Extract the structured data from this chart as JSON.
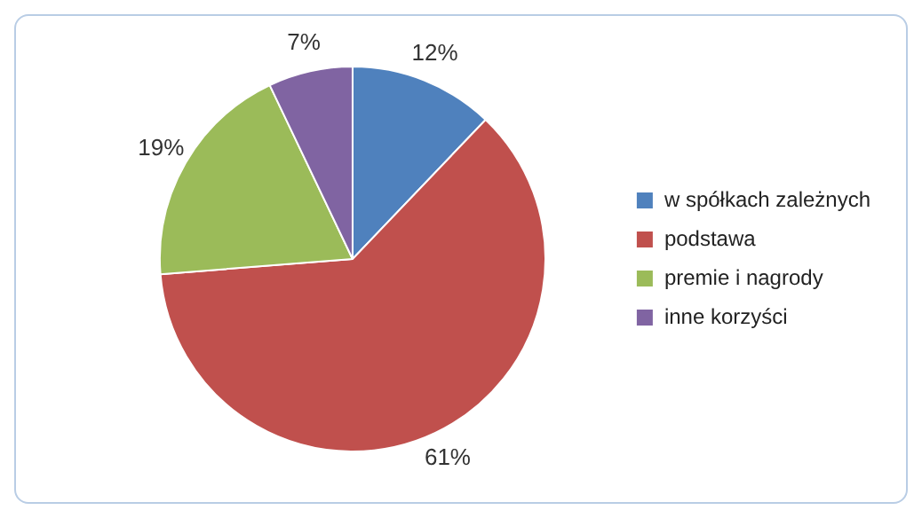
{
  "chart_data": {
    "type": "pie",
    "categories": [
      "w spółkach zależnych",
      "podstawa",
      "premie i nagrody",
      "inne korzyści"
    ],
    "values": [
      12,
      61,
      19,
      7
    ],
    "colors": [
      "#4f81bd",
      "#c0504d",
      "#9bbb59",
      "#8064a2"
    ],
    "value_labels": [
      "12%",
      "61%",
      "19%",
      "7%"
    ],
    "legend": "right"
  }
}
